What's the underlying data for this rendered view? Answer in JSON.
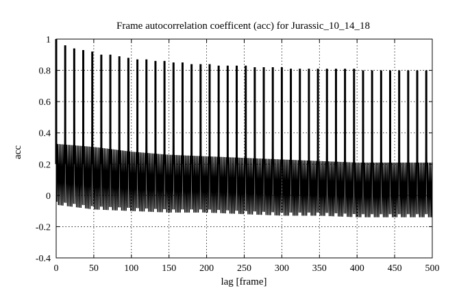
{
  "chart_data": {
    "type": "line",
    "title": "Frame autocorrelation coefficent (acc) for Jurassic_10_14_18",
    "xlabel": "lag [frame]",
    "ylabel": "acc",
    "xlim": [
      0,
      500
    ],
    "ylim": [
      -0.4,
      1
    ],
    "xticks": [
      0,
      50,
      100,
      150,
      200,
      250,
      300,
      350,
      400,
      450,
      500
    ],
    "yticks": [
      -0.4,
      -0.2,
      0,
      0.2,
      0.4,
      0.6,
      0.8,
      1
    ],
    "grid": true,
    "legend": "none",
    "series": [
      {
        "peak_period_frames": 12,
        "peak_lags": [
          0,
          12,
          24,
          36,
          48,
          60,
          72,
          84,
          96,
          108,
          120,
          132,
          144,
          156,
          168,
          180,
          192,
          204,
          216,
          228,
          240,
          252,
          264,
          276,
          288,
          300,
          312,
          324,
          336,
          348,
          360,
          372,
          384,
          396,
          408,
          420,
          432,
          444,
          456,
          468,
          480,
          492
        ],
        "peak_values": [
          1.0,
          0.96,
          0.94,
          0.93,
          0.92,
          0.9,
          0.9,
          0.89,
          0.88,
          0.87,
          0.87,
          0.86,
          0.86,
          0.85,
          0.85,
          0.84,
          0.84,
          0.84,
          0.83,
          0.83,
          0.83,
          0.83,
          0.82,
          0.82,
          0.82,
          0.82,
          0.81,
          0.81,
          0.81,
          0.81,
          0.81,
          0.81,
          0.81,
          0.81,
          0.8,
          0.8,
          0.8,
          0.8,
          0.8,
          0.8,
          0.8,
          0.8
        ],
        "band_x": [
          0,
          50,
          100,
          150,
          200,
          250,
          300,
          350,
          400,
          450,
          500
        ],
        "band_upper": [
          0.38,
          0.36,
          0.33,
          0.31,
          0.3,
          0.29,
          0.28,
          0.27,
          0.26,
          0.26,
          0.26
        ],
        "band_lower": [
          -0.06,
          -0.09,
          -0.1,
          -0.11,
          -0.11,
          -0.12,
          -0.13,
          -0.13,
          -0.14,
          -0.14,
          -0.14
        ]
      }
    ]
  }
}
